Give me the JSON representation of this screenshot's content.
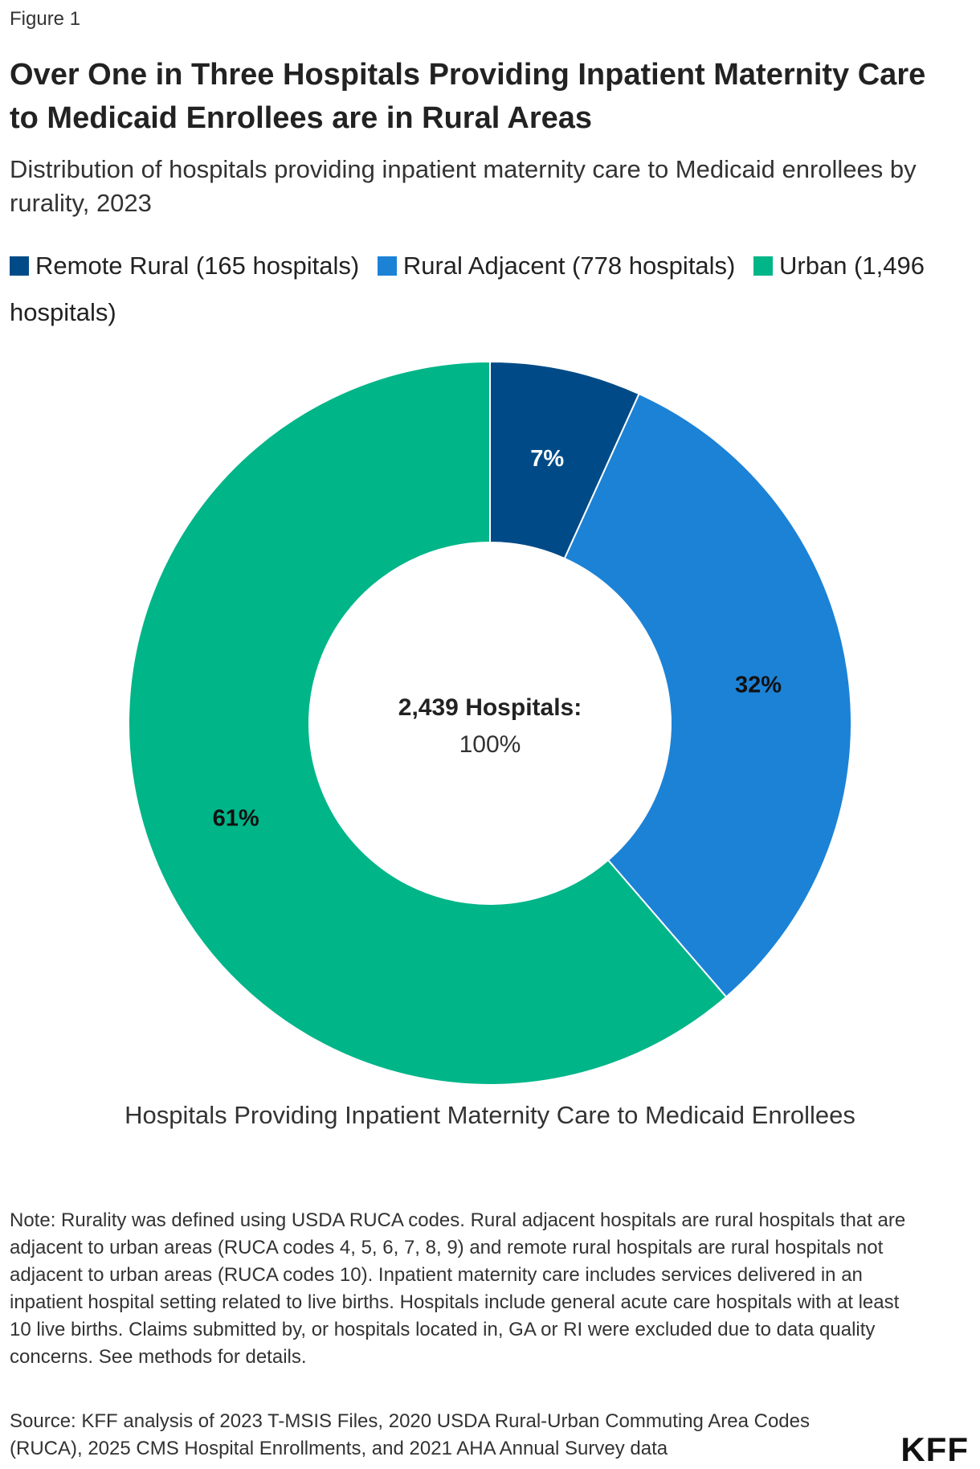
{
  "figure_label": "Figure 1",
  "title": "Over One in Three Hospitals Providing Inpatient Maternity Care to Medicaid Enrollees are in Rural Areas",
  "subtitle": "Distribution of hospitals providing inpatient maternity care to Medicaid enrollees by rurality, 2023",
  "caption": "Hospitals Providing Inpatient Maternity Care to Medicaid Enrollees",
  "note": "Note: Rurality was defined using USDA RUCA codes. Rural adjacent hospitals are rural hospitals that are adjacent to urban areas (RUCA codes 4, 5, 6, 7, 8, 9) and remote rural hospitals are rural hospitals not adjacent to urban areas (RUCA codes 10). Inpatient maternity care includes services delivered in an inpatient hospital setting related to live births. Hospitals include general acute care hospitals with at least 10 live births. Claims submitted by, or hospitals located in, GA or RI were excluded due to data quality concerns. See methods for details.",
  "source": "Source: KFF analysis of 2023 T-MSIS Files, 2020 USDA Rural-Urban Commuting Area Codes (RUCA), 2025 CMS Hospital Enrollments, and 2021 AHA Annual Survey data",
  "logo": "KFF",
  "chart_data": {
    "type": "pie",
    "donut": true,
    "legend_position": "top-left",
    "center_label": "2,439 Hospitals:",
    "center_value": "100%",
    "slices": [
      {
        "legend": "Remote Rural (165 hospitals)",
        "value": 165,
        "percent": 7,
        "label": "7%",
        "color": "#004b87",
        "label_color": "#ffffff"
      },
      {
        "legend": "Rural Adjacent (778 hospitals)",
        "value": 778,
        "percent": 32,
        "label": "32%",
        "color": "#1c82d6",
        "label_color": "#111111"
      },
      {
        "legend": "Urban (1,496 hospitals)",
        "value": 1496,
        "percent": 61,
        "label": "61%",
        "color": "#00b588",
        "label_color": "#111111"
      }
    ]
  }
}
